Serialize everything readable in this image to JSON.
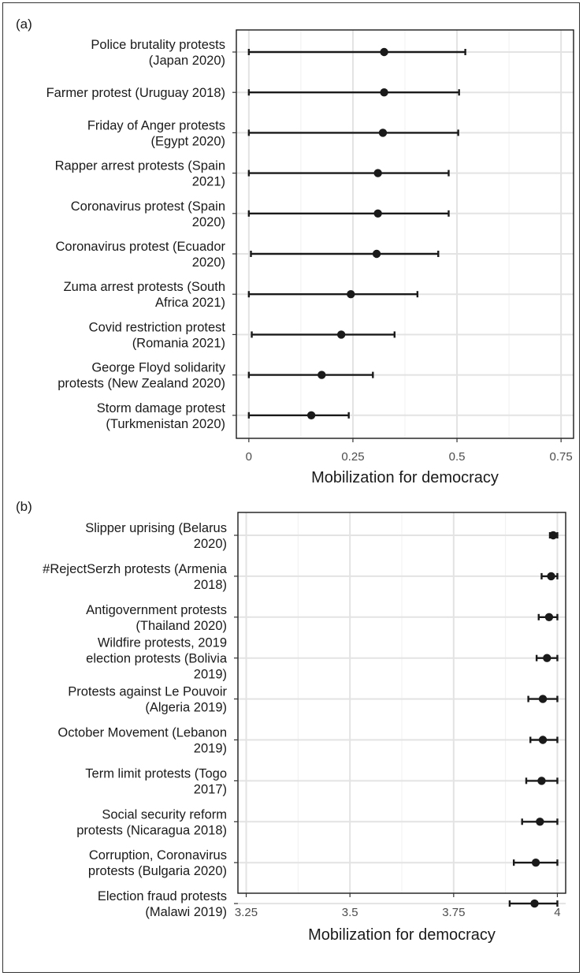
{
  "chart_data": [
    {
      "type": "errorbar",
      "panel_label": "(a)",
      "xlabel": "Mobilization for democracy",
      "xlim": [
        -0.03,
        0.78
      ],
      "xticks": [
        0,
        0.25,
        0.5,
        0.75
      ],
      "xtick_labels": [
        "0",
        "0.25",
        "0.5",
        "0.75"
      ],
      "grid": true,
      "categories": [
        [
          "Police brutality protests",
          "(Japan 2020)"
        ],
        [
          "Farmer protest (Uruguay 2018)"
        ],
        [
          "Friday of Anger protests",
          "(Egypt 2020)"
        ],
        [
          "Rapper arrest protests (Spain",
          "2021)"
        ],
        [
          "Coronavirus protest (Spain",
          "2020)"
        ],
        [
          "Coronavirus protest (Ecuador",
          "2020)"
        ],
        [
          "Zuma arrest protests (South",
          "Africa 2021)"
        ],
        [
          "Covid restriction protest",
          "(Romania 2021)"
        ],
        [
          "George Floyd solidarity",
          "protests (New Zealand 2020)"
        ],
        [
          "Storm damage protest",
          "(Turkmenistan 2020)"
        ]
      ],
      "estimates": [
        0.325,
        0.325,
        0.322,
        0.31,
        0.31,
        0.307,
        0.245,
        0.222,
        0.175,
        0.15
      ],
      "lower": [
        0.0,
        0.0,
        0.0,
        0.0,
        0.0,
        0.005,
        0.0,
        0.007,
        0.0,
        0.0
      ],
      "upper": [
        0.52,
        0.505,
        0.503,
        0.48,
        0.48,
        0.455,
        0.405,
        0.35,
        0.298,
        0.24
      ]
    },
    {
      "type": "errorbar",
      "panel_label": "(b)",
      "xlabel": "Mobilization for democracy",
      "xlim": [
        3.23,
        4.02
      ],
      "xticks": [
        3.25,
        3.5,
        3.75,
        4
      ],
      "xtick_labels": [
        "3.25",
        "3.5",
        "3.75",
        "4"
      ],
      "grid": true,
      "categories": [
        [
          "Slipper uprising (Belarus",
          "2020)"
        ],
        [
          "#RejectSerzh protests (Armenia",
          "2018)"
        ],
        [
          "Antigovernment protests",
          "(Thailand 2020)"
        ],
        [
          "Wildfire protests, 2019",
          "election protests (Bolivia",
          "2019)"
        ],
        [
          "Protests against Le Pouvoir",
          "(Algeria 2019)"
        ],
        [
          "October Movement (Lebanon",
          "2019)"
        ],
        [
          "Term limit protests (Togo",
          "2017)"
        ],
        [
          "Social security reform",
          "protests (Nicaragua 2018)"
        ],
        [
          "Corruption, Coronavirus",
          "protests (Bulgaria 2020)"
        ],
        [
          "Election fraud protests",
          "(Malawi 2019)"
        ]
      ],
      "estimates": [
        3.99,
        3.985,
        3.98,
        3.975,
        3.965,
        3.965,
        3.962,
        3.958,
        3.948,
        3.945
      ],
      "lower": [
        3.982,
        3.962,
        3.955,
        3.95,
        3.93,
        3.935,
        3.925,
        3.915,
        3.895,
        3.885
      ],
      "upper": [
        4.0,
        4.0,
        4.0,
        4.0,
        4.0,
        4.0,
        4.0,
        4.0,
        4.0,
        4.0
      ]
    }
  ]
}
